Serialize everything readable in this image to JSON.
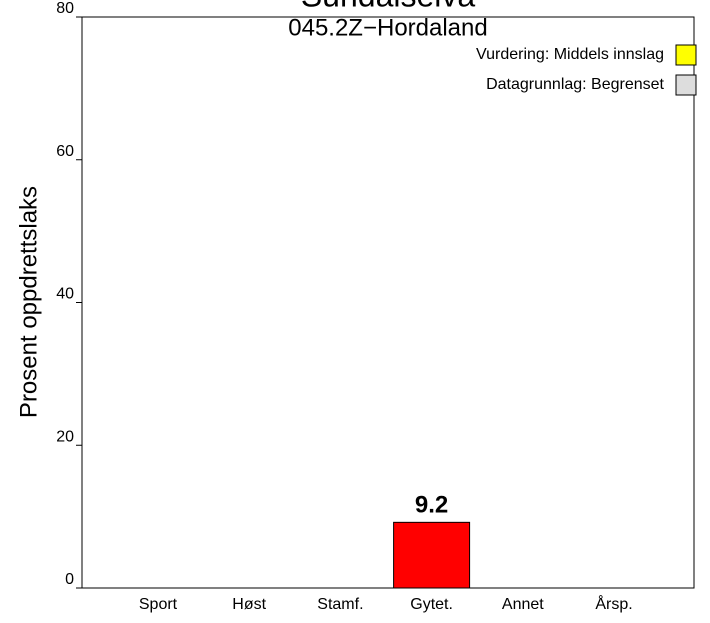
{
  "chart_data": {
    "type": "bar",
    "title": "Sundalselva",
    "subtitle": "045.2Z−Hordaland",
    "ylabel": "Prosent oppdrettslaks",
    "categories": [
      "Sport",
      "Høst",
      "Stamf.",
      "Gytet.",
      "Annet",
      "Årsp."
    ],
    "values": [
      0,
      0,
      0,
      9.2,
      0,
      0
    ],
    "color": "#ff0000",
    "ylim": [
      0,
      80
    ],
    "yticks": [
      0,
      20,
      40,
      60,
      80
    ],
    "legend": [
      {
        "name": "Vurdering: Middels innslag",
        "color": "#ffff00"
      },
      {
        "name": "Datagrunnlag: Begrenset",
        "color": "#dddddd"
      }
    ],
    "legend_position": "top-right"
  }
}
